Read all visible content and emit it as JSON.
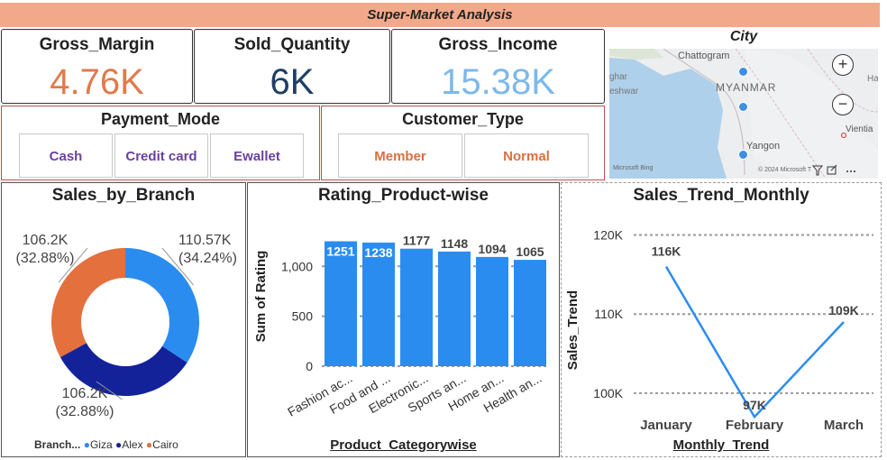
{
  "header": {
    "title": "Super-Market Analysis"
  },
  "kpis": [
    {
      "title": "Gross_Margin",
      "value": "4.76K",
      "color": "#e07a4c"
    },
    {
      "title": "Sold_Quantity",
      "value": "6K",
      "color": "#1f3e66"
    },
    {
      "title": "Gross_Income",
      "value": "15.38K",
      "color": "#7db8ea"
    }
  ],
  "payment": {
    "title": "Payment_Mode",
    "options": [
      "Cash",
      "Credit card",
      "Ewallet"
    ],
    "color": "#6b3fa0"
  },
  "customer": {
    "title": "Customer_Type",
    "options": [
      "Member",
      "Normal"
    ],
    "color": "#d9703f"
  },
  "map": {
    "title": "City",
    "labels": {
      "chattogram": "Chattogram",
      "myanmar": "MYANMAR",
      "yangon": "Yangon",
      "left1": "ghar",
      "left2": "eshwar",
      "right1": "Ha",
      "right2": "Vientia",
      "attribution": "© 2024 Microsoft T",
      "bing": "Microsoft Bing"
    },
    "zoom_in": "+",
    "zoom_out": "−"
  },
  "chart_data": [
    {
      "type": "pie",
      "title": "Sales_by_Branch",
      "legend_title": "Branch...",
      "slices": [
        {
          "name": "Giza",
          "value": 110.57,
          "value_label": "110.57K",
          "pct_label": "(34.24%)",
          "color": "#2b8cf0"
        },
        {
          "name": "Alex",
          "value": 106.2,
          "value_label": "106.2K",
          "pct_label": "(32.88%)",
          "color": "#14229a"
        },
        {
          "name": "Cairo",
          "value": 106.2,
          "value_label": "106.2K",
          "pct_label": "(32.88%)",
          "color": "#e4703e"
        }
      ]
    },
    {
      "type": "bar",
      "title": "Rating_Product-wise",
      "xlabel": "Product_Categorywise",
      "ylabel": "Sum of Rating",
      "categories": [
        "Fashion ac...",
        "Food and ...",
        "Electronic...",
        "Sports an...",
        "Home an...",
        "Health an..."
      ],
      "values": [
        1251,
        1238,
        1177,
        1148,
        1094,
        1065
      ],
      "ylim": [
        0,
        1400
      ],
      "yticks": [
        0,
        500,
        1000
      ],
      "ytick_labels": [
        "0",
        "500",
        "1,000"
      ],
      "color": "#2b8cf0"
    },
    {
      "type": "line",
      "title": "Sales_Trend_Monthly",
      "xlabel": "Monthly_Trend",
      "ylabel": "Sales_Trend",
      "categories": [
        "January",
        "February",
        "March"
      ],
      "values": [
        116,
        97,
        109
      ],
      "value_labels": [
        "116K",
        "97K",
        "109K"
      ],
      "ylim": [
        96,
        122
      ],
      "yticks": [
        100,
        110,
        120
      ],
      "ytick_labels": [
        "100K",
        "110K",
        "120K"
      ],
      "color": "#2b8cf0"
    }
  ]
}
